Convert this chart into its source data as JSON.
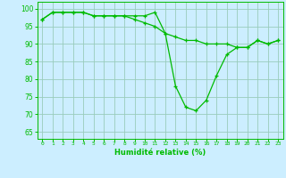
{
  "x": [
    0,
    1,
    2,
    3,
    4,
    5,
    6,
    7,
    8,
    9,
    10,
    11,
    12,
    13,
    14,
    15,
    16,
    17,
    18,
    19,
    20,
    21,
    22,
    23
  ],
  "series1": [
    97,
    99,
    99,
    99,
    99,
    98,
    98,
    98,
    98,
    98,
    98,
    99,
    93,
    78,
    72,
    71,
    74,
    81,
    87,
    89,
    89,
    91,
    90,
    91
  ],
  "series2": [
    97,
    99,
    99,
    99,
    99,
    98,
    98,
    98,
    98,
    97,
    96,
    95,
    93,
    92,
    91,
    91,
    90,
    90,
    90,
    89,
    89,
    91,
    90,
    91
  ],
  "line_color": "#00bb00",
  "marker": "+",
  "bg_color": "#cceeff",
  "grid_color": "#99ccbb",
  "xlabel": "Humidité relative (%)",
  "ylabel_ticks": [
    65,
    70,
    75,
    80,
    85,
    90,
    95,
    100
  ],
  "xlim": [
    -0.5,
    23.5
  ],
  "ylim": [
    63,
    102
  ],
  "tick_color": "#00bb00",
  "xlabel_fontsize": 6.0
}
